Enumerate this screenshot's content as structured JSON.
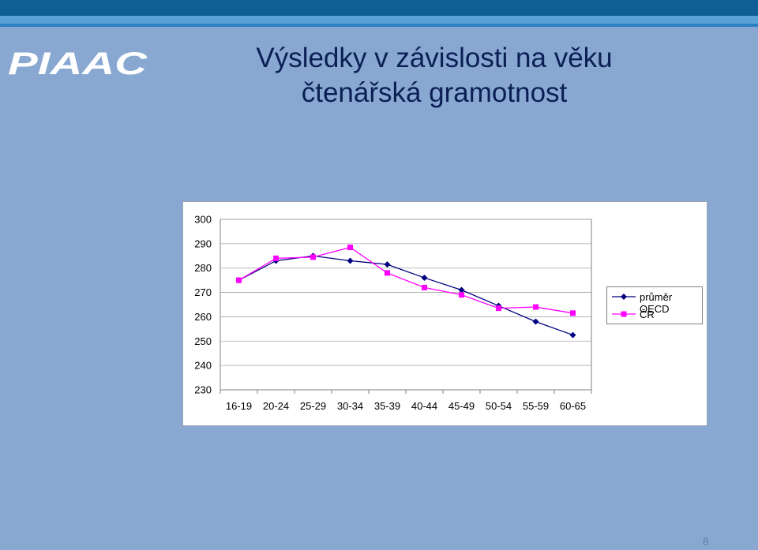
{
  "slide": {
    "logo_text": "PIAAC",
    "title_line1": "Výsledky v závislosti na věku",
    "title_line2": "čtenářská gramotnost",
    "page_number": "8"
  },
  "chart_data": {
    "type": "line",
    "title": "",
    "xlabel": "",
    "ylabel": "",
    "categories": [
      "16-19",
      "20-24",
      "25-29",
      "30-34",
      "35-39",
      "40-44",
      "45-49",
      "50-54",
      "55-59",
      "60-65"
    ],
    "ylim": [
      230,
      300
    ],
    "yticks": [
      230,
      240,
      250,
      260,
      270,
      280,
      290,
      300
    ],
    "grid": true,
    "legend_position": "right",
    "series": [
      {
        "name": "průměr OECD",
        "color": "#000080",
        "marker": "diamond",
        "values": [
          275,
          283,
          285,
          283,
          281.5,
          276,
          271,
          264.5,
          258,
          252.5
        ]
      },
      {
        "name": "ČR",
        "color": "#ff00ff",
        "marker": "square",
        "values": [
          275,
          284,
          284.5,
          288.5,
          278,
          272,
          269,
          263.5,
          264,
          261.5
        ]
      }
    ]
  }
}
